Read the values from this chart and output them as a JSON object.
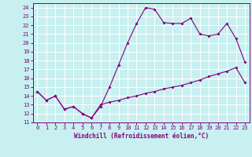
{
  "xlabel": "Windchill (Refroidissement éolien,°C)",
  "background_color": "#c8f0f0",
  "grid_color": "#ffffff",
  "line_color": "#800080",
  "ylim": [
    11,
    24.5
  ],
  "xlim": [
    -0.5,
    23.5
  ],
  "yticks": [
    11,
    12,
    13,
    14,
    15,
    16,
    17,
    18,
    19,
    20,
    21,
    22,
    23,
    24
  ],
  "xticks": [
    0,
    1,
    2,
    3,
    4,
    5,
    6,
    7,
    8,
    9,
    10,
    11,
    12,
    13,
    14,
    15,
    16,
    17,
    18,
    19,
    20,
    21,
    22,
    23
  ],
  "series1_x": [
    0,
    1,
    2,
    3,
    4,
    5,
    6,
    7,
    8,
    9,
    10,
    11,
    12,
    13,
    14,
    15,
    16,
    17,
    18,
    19,
    20,
    21,
    22,
    23
  ],
  "series1_y": [
    14.5,
    13.5,
    14.0,
    12.5,
    12.8,
    12.0,
    11.5,
    12.8,
    15.0,
    17.5,
    20.0,
    22.2,
    24.0,
    23.8,
    22.3,
    22.2,
    22.2,
    22.8,
    21.0,
    20.8,
    21.0,
    22.2,
    20.5,
    17.8
  ],
  "series2_x": [
    0,
    1,
    2,
    3,
    4,
    5,
    6,
    7,
    8,
    9,
    10,
    11,
    12,
    13,
    14,
    15,
    16,
    17,
    18,
    19,
    20,
    21,
    22,
    23
  ],
  "series2_y": [
    14.5,
    13.5,
    14.0,
    12.5,
    12.8,
    12.0,
    11.5,
    13.0,
    13.3,
    13.5,
    13.8,
    14.0,
    14.3,
    14.5,
    14.8,
    15.0,
    15.2,
    15.5,
    15.8,
    16.2,
    16.5,
    16.8,
    17.2,
    15.5
  ]
}
